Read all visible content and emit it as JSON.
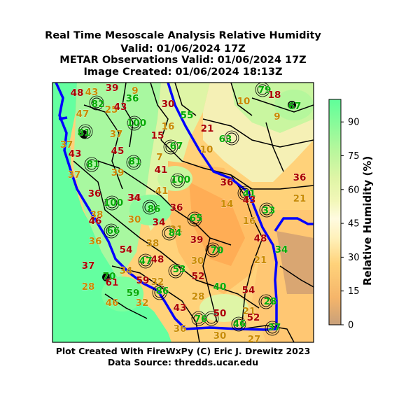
{
  "header": {
    "line1": "Real Time Mesoscale Analysis Relative Humidity",
    "line2": "Valid: 01/06/2024 17Z",
    "line3": "METAR Observations Valid: 01/06/2024 17Z",
    "line4": "Image Created: 01/06/2024 18:13Z"
  },
  "footer": {
    "credit": "Plot Created With FireWxPy (C) Eric J. Drewitz 2023",
    "source": "Data Source: thredds.ucar.edu"
  },
  "colorbar": {
    "label": "Relative Humidity (%)",
    "ticks": [
      "0",
      "15",
      "30",
      "45",
      "60",
      "75",
      "90"
    ],
    "tick_values": [
      0,
      15,
      30,
      45,
      60,
      75,
      90
    ],
    "min": 0,
    "max": 100,
    "colors": {
      "dry": "#c8a07a",
      "mid_low": "#ffd27a",
      "mid": "#fffacd",
      "mid_high": "#dff5a6",
      "wet": "#5fff9a"
    }
  },
  "colors": {
    "boundary_blue": "#0000ff",
    "station_red": "#aa0000",
    "station_green": "#00aa00",
    "station_orange": "#c88a00"
  },
  "stations": [
    {
      "v": "48",
      "c": "r"
    },
    {
      "v": "43",
      "c": "o"
    },
    {
      "v": "39",
      "c": "r"
    },
    {
      "v": "9",
      "c": "o"
    },
    {
      "v": "36",
      "c": "g"
    },
    {
      "v": "30",
      "c": "r"
    },
    {
      "v": "55",
      "c": "g"
    },
    {
      "v": "10",
      "c": "o"
    },
    {
      "v": "79",
      "c": "g"
    },
    {
      "v": "18",
      "c": "r"
    },
    {
      "v": "9",
      "c": "o"
    },
    {
      "v": "67",
      "c": "g"
    },
    {
      "v": "82",
      "c": "g"
    },
    {
      "v": "25",
      "c": "o"
    },
    {
      "v": "43",
      "c": "r"
    },
    {
      "v": "47",
      "c": "o"
    },
    {
      "v": "100",
      "c": "g"
    },
    {
      "v": "15",
      "c": "r"
    },
    {
      "v": "16",
      "c": "o"
    },
    {
      "v": "21",
      "c": "r"
    },
    {
      "v": "81",
      "c": "g"
    },
    {
      "v": "37",
      "c": "o"
    },
    {
      "v": "63",
      "c": "g"
    },
    {
      "v": "37",
      "c": "o"
    },
    {
      "v": "43",
      "c": "r"
    },
    {
      "v": "45",
      "c": "r"
    },
    {
      "v": "67",
      "c": "g"
    },
    {
      "v": "10",
      "c": "o"
    },
    {
      "v": "7",
      "c": "o"
    },
    {
      "v": "81",
      "c": "g"
    },
    {
      "v": "81",
      "c": "g"
    },
    {
      "v": "41",
      "c": "r"
    },
    {
      "v": "37",
      "c": "o"
    },
    {
      "v": "39",
      "c": "o"
    },
    {
      "v": "100",
      "c": "g"
    },
    {
      "v": "36",
      "c": "r"
    },
    {
      "v": "36",
      "c": "r"
    },
    {
      "v": "41",
      "c": "g"
    },
    {
      "v": "43",
      "c": "r"
    },
    {
      "v": "34",
      "c": "r"
    },
    {
      "v": "41",
      "c": "o"
    },
    {
      "v": "21",
      "c": "o"
    },
    {
      "v": "36",
      "c": "r"
    },
    {
      "v": "100",
      "c": "g"
    },
    {
      "v": "34",
      "c": "r"
    },
    {
      "v": "86",
      "c": "g"
    },
    {
      "v": "36",
      "c": "r"
    },
    {
      "v": "14",
      "c": "o"
    },
    {
      "v": "33",
      "c": "g"
    },
    {
      "v": "38",
      "c": "o"
    },
    {
      "v": "46",
      "c": "r"
    },
    {
      "v": "30",
      "c": "o"
    },
    {
      "v": "34",
      "c": "r"
    },
    {
      "v": "65",
      "c": "g"
    },
    {
      "v": "16",
      "c": "o"
    },
    {
      "v": "66",
      "c": "g"
    },
    {
      "v": "21",
      "c": "o"
    },
    {
      "v": "84",
      "c": "g"
    },
    {
      "v": "36",
      "c": "o"
    },
    {
      "v": "38",
      "c": "o"
    },
    {
      "v": "39",
      "c": "r"
    },
    {
      "v": "48",
      "c": "r"
    },
    {
      "v": "34",
      "c": "g"
    },
    {
      "v": "54",
      "c": "r"
    },
    {
      "v": "70",
      "c": "g"
    },
    {
      "v": "47",
      "c": "g"
    },
    {
      "v": "48",
      "c": "r"
    },
    {
      "v": "37",
      "c": "r"
    },
    {
      "v": "34",
      "c": "o"
    },
    {
      "v": "30",
      "c": "o"
    },
    {
      "v": "21",
      "c": "o"
    },
    {
      "v": "53",
      "c": "g"
    },
    {
      "v": "52",
      "c": "r"
    },
    {
      "v": "70",
      "c": "g"
    },
    {
      "v": "61",
      "c": "r"
    },
    {
      "v": "59",
      "c": "r"
    },
    {
      "v": "32",
      "c": "o"
    },
    {
      "v": "28",
      "c": "o"
    },
    {
      "v": "59",
      "c": "g"
    },
    {
      "v": "86",
      "c": "g"
    },
    {
      "v": "40",
      "c": "g"
    },
    {
      "v": "54",
      "c": "r"
    },
    {
      "v": "46",
      "c": "o"
    },
    {
      "v": "32",
      "c": "o"
    },
    {
      "v": "28",
      "c": "o"
    },
    {
      "v": "28",
      "c": "g"
    },
    {
      "v": "43",
      "c": "r"
    },
    {
      "v": "50",
      "c": "r"
    },
    {
      "v": "21",
      "c": "o"
    },
    {
      "v": "76",
      "c": "g"
    },
    {
      "v": "46",
      "c": "g"
    },
    {
      "v": "52",
      "c": "r"
    },
    {
      "v": "36",
      "c": "o"
    },
    {
      "v": "30",
      "c": "o"
    },
    {
      "v": "37",
      "c": "g"
    },
    {
      "v": "27",
      "c": "o"
    }
  ]
}
